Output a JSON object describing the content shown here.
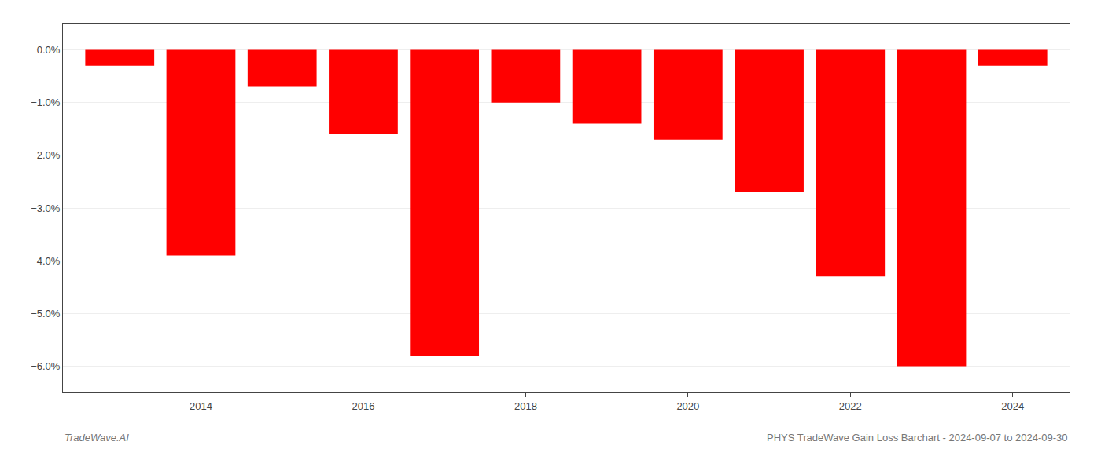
{
  "chart_data": {
    "type": "bar",
    "title": "PHYS TradeWave Gain Loss Barchart - 2024-09-07 to 2024-09-30",
    "annotations": [
      "TradeWave.AI"
    ],
    "x": [
      2013,
      2014,
      2015,
      2016,
      2017,
      2018,
      2019,
      2020,
      2021,
      2022,
      2023,
      2024
    ],
    "values": [
      -0.003,
      -0.039,
      -0.007,
      -0.016,
      -0.058,
      -0.01,
      -0.014,
      -0.017,
      -0.027,
      -0.043,
      -0.06,
      -0.003
    ],
    "color": "#ff0000",
    "xlim": [
      2012.3,
      2024.7
    ],
    "xticks": [
      2014,
      2016,
      2018,
      2020,
      2022,
      2024
    ],
    "ylim": [
      -0.065,
      0.005
    ],
    "yticks": [
      {
        "value": 0.0,
        "label": "0.0%"
      },
      {
        "value": -0.01,
        "label": "−1.0%"
      },
      {
        "value": -0.02,
        "label": "−2.0%"
      },
      {
        "value": -0.03,
        "label": "−3.0%"
      },
      {
        "value": -0.04,
        "label": "−4.0%"
      },
      {
        "value": -0.05,
        "label": "−5.0%"
      },
      {
        "value": -0.06,
        "label": "−6.0%"
      }
    ],
    "grid": true
  }
}
